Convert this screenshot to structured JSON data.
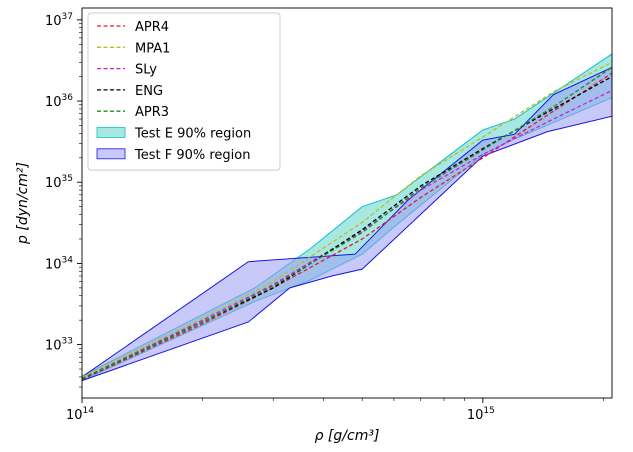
{
  "chart_data": {
    "type": "line",
    "title": "",
    "xlabel": "ρ [g/cm³]",
    "ylabel": "p [dyn/cm²]",
    "x_scale": "log",
    "y_scale": "log",
    "xlim": [
      100000000000000.0,
      2100000000000000.0
    ],
    "ylim": [
      2.2e+32,
      1.4e+37
    ],
    "grid": false,
    "legend_position": "top-left",
    "x_ticks": [
      {
        "value": 100000000000000.0,
        "base": "10",
        "exp": "14"
      },
      {
        "value": 1000000000000000.0,
        "base": "10",
        "exp": "15"
      }
    ],
    "y_ticks": [
      {
        "value": 1e+33,
        "base": "10",
        "exp": "33"
      },
      {
        "value": 1e+34,
        "base": "10",
        "exp": "34"
      },
      {
        "value": 1e+35,
        "base": "10",
        "exp": "35"
      },
      {
        "value": 1e+36,
        "base": "10",
        "exp": "36"
      },
      {
        "value": 1e+37,
        "base": "10",
        "exp": "37"
      }
    ],
    "bands": [
      {
        "name": "Test E 90% region",
        "fill": "#5fd6cc",
        "edge": "#10c0c8",
        "upper": [
          [
            100000000000000.0,
            4.1e+32
          ],
          [
            270000000000000.0,
            5e+33
          ],
          [
            370000000000000.0,
            1.5e+34
          ],
          [
            500000000000000.0,
            5e+34
          ],
          [
            610000000000000.0,
            7e+34
          ],
          [
            1000000000000000.0,
            4.4e+35
          ],
          [
            1200000000000000.0,
            6e+35
          ],
          [
            2100000000000000.0,
            3.8e+36
          ]
        ],
        "lower": [
          [
            100000000000000.0,
            3.6e+32
          ],
          [
            270000000000000.0,
            3.4e+33
          ],
          [
            370000000000000.0,
            6.2e+33
          ],
          [
            500000000000000.0,
            1.3e+34
          ],
          [
            610000000000000.0,
            3e+34
          ],
          [
            1000000000000000.0,
            2.2e+35
          ],
          [
            1200000000000000.0,
            3.4e+35
          ],
          [
            2100000000000000.0,
            1.1e+36
          ]
        ]
      },
      {
        "name": "Test F 90% region",
        "fill": "#9b9cf4",
        "edge": "#1616e6",
        "upper": [
          [
            100000000000000.0,
            4e+32
          ],
          [
            260000000000000.0,
            1.05e+34
          ],
          [
            480000000000000.0,
            1.3e+34
          ],
          [
            650000000000000.0,
            6e+34
          ],
          [
            1000000000000000.0,
            3.3e+35
          ],
          [
            1200000000000000.0,
            3.9e+35
          ],
          [
            1500000000000000.0,
            1.2e+36
          ],
          [
            2100000000000000.0,
            2.6e+36
          ]
        ],
        "lower": [
          [
            100000000000000.0,
            3.6e+32
          ],
          [
            260000000000000.0,
            1.9e+33
          ],
          [
            330000000000000.0,
            5e+33
          ],
          [
            420000000000000.0,
            7e+33
          ],
          [
            500000000000000.0,
            8.5e+33
          ],
          [
            1000000000000000.0,
            2.1e+35
          ],
          [
            1450000000000000.0,
            4.2e+35
          ],
          [
            2100000000000000.0,
            6.5e+35
          ]
        ]
      }
    ],
    "series": [
      {
        "name": "APR4",
        "color": "#e5192e",
        "points": [
          [
            100000000000000.0,
            3.7e+32
          ],
          [
            200000000000000.0,
            1.8e+33
          ],
          [
            300000000000000.0,
            5e+33
          ],
          [
            500000000000000.0,
            2e+34
          ],
          [
            700000000000000.0,
            6.5e+34
          ],
          [
            1000000000000000.0,
            2e+35
          ],
          [
            1500000000000000.0,
            7.5e+35
          ],
          [
            2100000000000000.0,
            2.2e+36
          ]
        ]
      },
      {
        "name": "MPA1",
        "color": "#bcbd22",
        "points": [
          [
            100000000000000.0,
            4e+32
          ],
          [
            200000000000000.0,
            2.1e+33
          ],
          [
            300000000000000.0,
            6e+33
          ],
          [
            500000000000000.0,
            3.2e+34
          ],
          [
            700000000000000.0,
            1.2e+35
          ],
          [
            1000000000000000.0,
            3.6e+35
          ],
          [
            1500000000000000.0,
            1.3e+36
          ],
          [
            2100000000000000.0,
            3e+36
          ]
        ]
      },
      {
        "name": "SLy",
        "color": "#cc22cc",
        "points": [
          [
            100000000000000.0,
            3.8e+32
          ],
          [
            200000000000000.0,
            2e+33
          ],
          [
            300000000000000.0,
            5.5e+33
          ],
          [
            500000000000000.0,
            2.5e+34
          ],
          [
            700000000000000.0,
            8e+34
          ],
          [
            1000000000000000.0,
            2.2e+35
          ],
          [
            1500000000000000.0,
            6e+35
          ],
          [
            2100000000000000.0,
            1.35e+36
          ]
        ]
      },
      {
        "name": "ENG",
        "color": "#000000",
        "points": [
          [
            100000000000000.0,
            3.8e+32
          ],
          [
            200000000000000.0,
            1.9e+33
          ],
          [
            300000000000000.0,
            5e+33
          ],
          [
            500000000000000.0,
            2.6e+34
          ],
          [
            700000000000000.0,
            9e+34
          ],
          [
            1000000000000000.0,
            2.6e+35
          ],
          [
            1500000000000000.0,
            8e+35
          ],
          [
            2100000000000000.0,
            2e+36
          ]
        ]
      },
      {
        "name": "APR3",
        "color": "#1c8c1c",
        "points": [
          [
            100000000000000.0,
            3.8e+32
          ],
          [
            200000000000000.0,
            1.9e+33
          ],
          [
            300000000000000.0,
            5.3e+33
          ],
          [
            500000000000000.0,
            2.4e+34
          ],
          [
            700000000000000.0,
            8.5e+34
          ],
          [
            1000000000000000.0,
            2.5e+35
          ],
          [
            1500000000000000.0,
            8.5e+35
          ],
          [
            2100000000000000.0,
            2.6e+36
          ]
        ]
      }
    ],
    "legend": [
      {
        "label": "APR4",
        "kind": "line",
        "color": "#e5192e"
      },
      {
        "label": "MPA1",
        "kind": "line",
        "color": "#bcbd22"
      },
      {
        "label": "SLy",
        "kind": "line",
        "color": "#cc22cc"
      },
      {
        "label": "ENG",
        "kind": "line",
        "color": "#000000"
      },
      {
        "label": "APR3",
        "kind": "line",
        "color": "#1c8c1c"
      },
      {
        "label": "Test E 90% region",
        "kind": "patch",
        "color": "#5fd6cc",
        "edge": "#10c0c8"
      },
      {
        "label": "Test F 90% region",
        "kind": "patch",
        "color": "#9b9cf4",
        "edge": "#1616e6"
      }
    ]
  }
}
